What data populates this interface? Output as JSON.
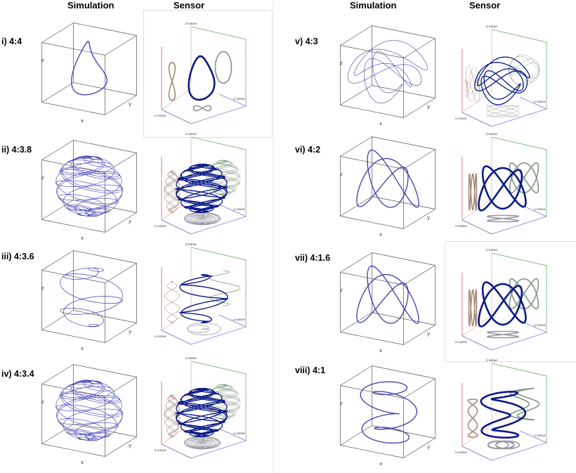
{
  "headers": {
    "left_simulation": "Simulation",
    "left_sensor": "Sensor",
    "right_simulation": "Simulation",
    "right_sensor": "Sensor"
  },
  "axis_labels": {
    "x": "x",
    "y": "y",
    "z": "z",
    "x_value": "x-value",
    "y_value": "y-value",
    "z_value": "z-value"
  },
  "rows": [
    {
      "label": "i) 4:4",
      "pattern": "figure-eight-curve"
    },
    {
      "label": "ii) 4:3.8",
      "pattern": "dense-sphere"
    },
    {
      "label": "iii) 4:3.6",
      "pattern": "sphere"
    },
    {
      "label": "iv) 4:3.4",
      "pattern": "dense-sphere"
    },
    {
      "label": "v) 4:3",
      "pattern": "sphere-knot"
    },
    {
      "label": "vi) 4:2",
      "pattern": "twisted-loop"
    },
    {
      "label": "vii) 4:1.6",
      "pattern": "twisted-loop"
    },
    {
      "label": "viii) 4:1",
      "pattern": "spiral-coil"
    }
  ],
  "colors": {
    "curve": "#3b3bb0",
    "sensor_curve": "#0b1a86",
    "x_proj": "#a88a78",
    "y_proj": "#7f967f",
    "z_proj": "#9a9aa5",
    "axis_red": "#c46565",
    "axis_green": "#6aa86a",
    "axis_blue": "#7b7be0"
  }
}
